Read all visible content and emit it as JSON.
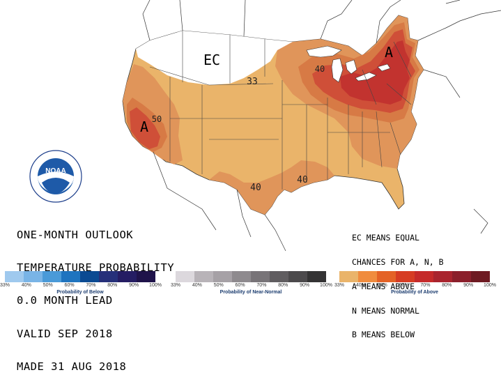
{
  "map": {
    "labels": {
      "ec": "EC",
      "above_west": "A",
      "above_east": "A",
      "c33": "33",
      "c40_ne": "40",
      "c50_w": "50",
      "c40_sw": "40",
      "c40_se": "40"
    }
  },
  "logo": {
    "text": "NOAA"
  },
  "title": {
    "line1": "ONE-MONTH OUTLOOK",
    "line2": "TEMPERATURE PROBABILITY",
    "line3": "0.0 MONTH LEAD",
    "line4": "VALID SEP 2018",
    "line5": "MADE 31 AUG 2018"
  },
  "legend_note": {
    "line1": "EC MEANS EQUAL",
    "line2": "CHANCES FOR A, N, B",
    "line3": "A MEANS ABOVE",
    "line4": "N MEANS NORMAL",
    "line5": "B MEANS BELOW"
  },
  "scales": {
    "below": {
      "title": "Probability of Below",
      "ticks": [
        "33%",
        "40%",
        "50%",
        "60%",
        "70%",
        "80%",
        "90%",
        "100%"
      ],
      "colors": [
        "#9fc9ee",
        "#79b4e6",
        "#4a9ad8",
        "#1f74bf",
        "#0b4a92",
        "#26307a",
        "#251d63",
        "#1f134a"
      ]
    },
    "normal": {
      "title": "Probability of Near-Normal",
      "ticks": [
        "33%",
        "40%",
        "50%",
        "60%",
        "70%",
        "80%",
        "90%",
        "100%"
      ],
      "colors": [
        "#dcd8dd",
        "#b8b3b8",
        "#a6a1a6",
        "#8e8a8e",
        "#787478",
        "#605d60",
        "#4c4a4c",
        "#343334"
      ]
    },
    "above": {
      "title": "Probability of Above",
      "ticks": [
        "33%",
        "40%",
        "50%",
        "60%",
        "70%",
        "80%",
        "90%",
        "100%"
      ],
      "colors": [
        "#eab46a",
        "#f08c3e",
        "#e46226",
        "#d63c23",
        "#c52a2a",
        "#a9242e",
        "#8b1f2b",
        "#6e1a22"
      ]
    }
  },
  "colors": {
    "p33": "#eab46a",
    "p40": "#e0955a",
    "p50": "#d77a45",
    "p60": "#cf4f38",
    "p70": "#c2332f"
  }
}
